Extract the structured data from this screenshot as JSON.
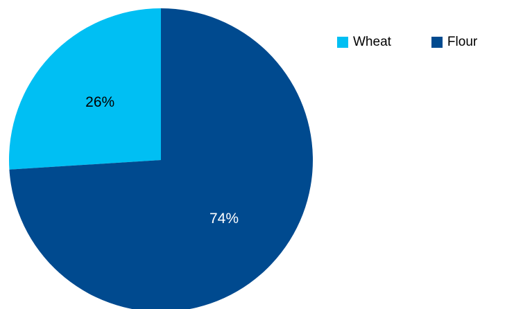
{
  "chart_data": {
    "type": "pie",
    "title": "",
    "slices": [
      {
        "name": "Wheat",
        "value": 26,
        "label": "26%",
        "color": "#00BFF3",
        "label_color": "#000000"
      },
      {
        "name": "Flour",
        "value": 74,
        "label": "74%",
        "color": "#004A8F",
        "label_color": "#ffffff"
      }
    ],
    "legend": {
      "placement": "top-right",
      "items": [
        "Wheat",
        "Flour"
      ]
    },
    "start_angle_deg": 0,
    "direction": "counterclockwise"
  }
}
